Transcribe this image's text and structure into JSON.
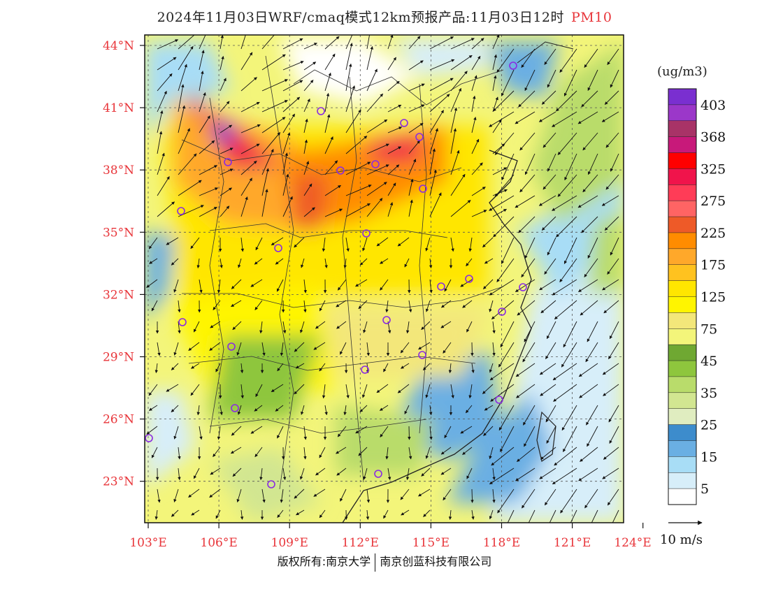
{
  "title": {
    "text": "2024年11月03日WRF/cmaq模式12km预报产品:11月03日12时",
    "variable": "PM10"
  },
  "map": {
    "lat_labels": [
      "44°N",
      "41°N",
      "38°N",
      "35°N",
      "32°N",
      "29°N",
      "26°N",
      "23°N"
    ],
    "lon_labels": [
      "103°E",
      "106°E",
      "109°E",
      "112°E",
      "115°E",
      "118°E",
      "121°E",
      "124°E"
    ],
    "lat_values": [
      44,
      41,
      38,
      35,
      32,
      29,
      26,
      23
    ],
    "lon_values": [
      103,
      106,
      109,
      112,
      115,
      118,
      121,
      124
    ],
    "extent": {
      "lon_min": 103,
      "lon_max": 124,
      "lat_min": 21.9,
      "lat_max": 44.4
    },
    "station_marker_color": "#8a2be2"
  },
  "colorbar": {
    "unit": "(ug/m3)",
    "labels": [
      "403",
      "368",
      "325",
      "275",
      "225",
      "175",
      "125",
      "75",
      "45",
      "35",
      "25",
      "15",
      "5"
    ],
    "colors": [
      "#7a2fd0",
      "#9b37c9",
      "#a83367",
      "#c8197a",
      "#ff0000",
      "#f0144b",
      "#ff3c57",
      "#ff6464",
      "#ee5a28",
      "#ff8c00",
      "#ffa82a",
      "#ffc21f",
      "#ffe600",
      "#fff500",
      "#f3e77a",
      "#f3f57a",
      "#6fa832",
      "#8ec63d",
      "#b9dc6b",
      "#d2e691",
      "#e0edc0",
      "#3d8ccc",
      "#6aafe3",
      "#a8ddf6",
      "#d7eef9",
      "#ffffff"
    ]
  },
  "wind": {
    "scale_label": "10 m/s"
  },
  "footer": {
    "left": "版权所有:南京大学",
    "right": "南京创蓝科技有限公司"
  }
}
